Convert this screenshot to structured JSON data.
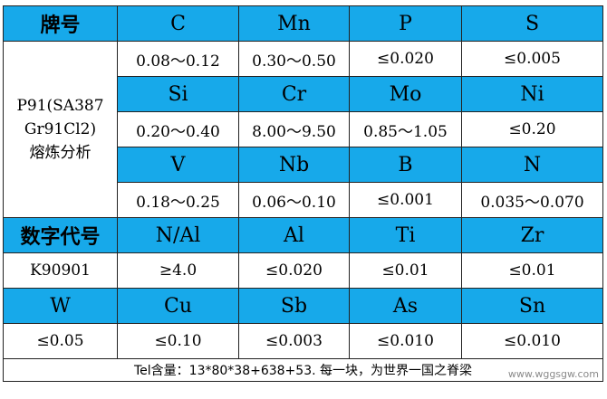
{
  "header_row": {
    "label": "牌号",
    "elements": [
      "C",
      "Mn",
      "P",
      "S"
    ]
  },
  "grade": {
    "line1": "P91(SA387",
    "line2": "Gr91Cl2)",
    "line3": "熔炼分析"
  },
  "row1_values": [
    "0.08～0.12",
    "0.30～0.50",
    "≤0.020",
    "≤0.005"
  ],
  "row2_elements": [
    "Si",
    "Cr",
    "Mo",
    "Ni"
  ],
  "row2_values": [
    "0.20～0.40",
    "8.00～9.50",
    "0.85～1.05",
    "≤0.20"
  ],
  "row3_elements": [
    "V",
    "Nb",
    "B",
    "N"
  ],
  "row3_values": [
    "0.18～0.25",
    "0.06～0.10",
    "≤0.001",
    "0.035～0.070"
  ],
  "code_row": {
    "label": "数字代号",
    "elements": [
      "N/Al",
      "Al",
      "Ti",
      "Zr"
    ]
  },
  "code_values": {
    "code": "K90901",
    "values": [
      "≥4.0",
      "≤0.020",
      "≤0.01",
      "≤0.01"
    ]
  },
  "row5_elements": [
    "W",
    "Cu",
    "Sb",
    "As",
    "Sn"
  ],
  "row5_values": [
    "≤0.05",
    "≤0.10",
    "≤0.003",
    "≤0.010",
    "≤0.010"
  ],
  "footer_note": "Tel含量：13*80*38+638+53. 每一块，为世界一国之脊梁",
  "watermark": "www.wggsgw.com"
}
